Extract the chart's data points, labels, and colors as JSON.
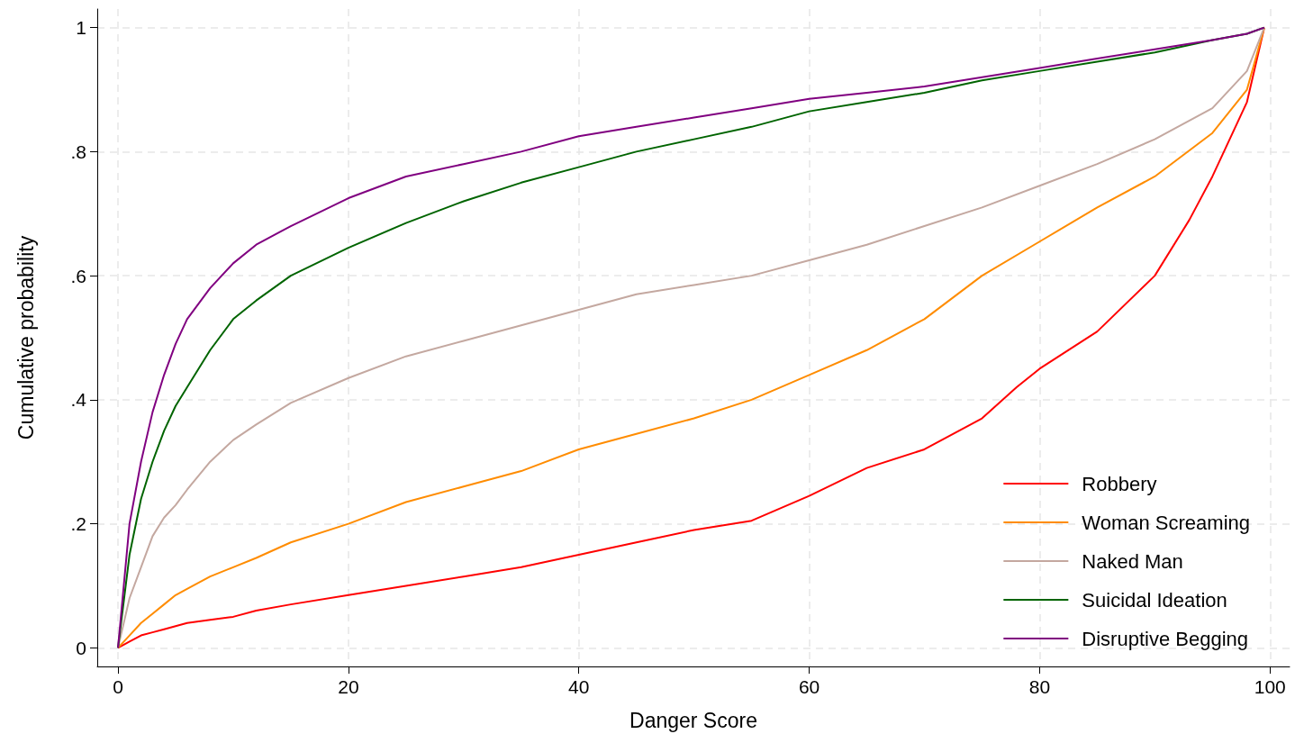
{
  "chart_data": {
    "type": "line",
    "xlabel": "Danger Score",
    "ylabel": "Cumulative probability",
    "x": [
      0,
      1,
      2,
      3,
      4,
      5,
      6,
      8,
      10,
      12,
      15,
      20,
      25,
      30,
      35,
      40,
      45,
      50,
      55,
      60,
      65,
      70,
      75,
      80,
      85,
      90,
      95,
      98,
      99.5
    ],
    "series": [
      {
        "name": "Robbery",
        "color": "#ff0000",
        "x": [
          0,
          1,
          2,
          3,
          4,
          5,
          6,
          8,
          10,
          12,
          15,
          20,
          25,
          30,
          35,
          40,
          45,
          50,
          55,
          60,
          65,
          70,
          75,
          78,
          80,
          85,
          90,
          93,
          95,
          98,
          99.5
        ],
        "values": [
          0,
          0.01,
          0.02,
          0.025,
          0.03,
          0.035,
          0.04,
          0.045,
          0.05,
          0.06,
          0.07,
          0.085,
          0.1,
          0.115,
          0.13,
          0.15,
          0.17,
          0.19,
          0.205,
          0.245,
          0.29,
          0.32,
          0.37,
          0.42,
          0.45,
          0.51,
          0.6,
          0.69,
          0.76,
          0.88,
          1
        ]
      },
      {
        "name": "Woman Screaming",
        "color": "#ff8c00",
        "values": [
          0,
          0.02,
          0.04,
          0.055,
          0.07,
          0.085,
          0.095,
          0.115,
          0.13,
          0.145,
          0.17,
          0.2,
          0.235,
          0.26,
          0.285,
          0.32,
          0.345,
          0.37,
          0.4,
          0.44,
          0.48,
          0.53,
          0.6,
          0.655,
          0.71,
          0.76,
          0.83,
          0.9,
          1
        ]
      },
      {
        "name": "Naked Man",
        "color": "#c4a8a0",
        "values": [
          0,
          0.08,
          0.13,
          0.18,
          0.21,
          0.23,
          0.255,
          0.3,
          0.335,
          0.36,
          0.395,
          0.435,
          0.47,
          0.495,
          0.52,
          0.545,
          0.57,
          0.585,
          0.6,
          0.625,
          0.65,
          0.68,
          0.71,
          0.745,
          0.78,
          0.82,
          0.87,
          0.93,
          1
        ]
      },
      {
        "name": "Suicidal Ideation",
        "color": "#006400",
        "values": [
          0,
          0.15,
          0.24,
          0.3,
          0.35,
          0.39,
          0.42,
          0.48,
          0.53,
          0.56,
          0.6,
          0.645,
          0.685,
          0.72,
          0.75,
          0.775,
          0.8,
          0.82,
          0.84,
          0.865,
          0.88,
          0.895,
          0.915,
          0.93,
          0.945,
          0.96,
          0.98,
          0.99,
          1
        ]
      },
      {
        "name": "Disruptive Begging",
        "color": "#800080",
        "values": [
          0,
          0.2,
          0.3,
          0.38,
          0.44,
          0.49,
          0.53,
          0.58,
          0.62,
          0.65,
          0.68,
          0.725,
          0.76,
          0.78,
          0.8,
          0.825,
          0.84,
          0.855,
          0.87,
          0.885,
          0.895,
          0.905,
          0.92,
          0.935,
          0.95,
          0.965,
          0.98,
          0.99,
          1
        ]
      }
    ],
    "xlim": [
      -1.8,
      101.7
    ],
    "xticks": [
      0,
      20,
      40,
      60,
      80,
      100
    ],
    "ylim": [
      -0.03,
      1.03
    ],
    "yticks": [
      {
        "value": 0,
        "label": "0"
      },
      {
        "value": 0.2,
        "label": ".2"
      },
      {
        "value": 0.4,
        "label": ".4"
      },
      {
        "value": 0.6,
        "label": ".6"
      },
      {
        "value": 0.8,
        "label": ".8"
      },
      {
        "value": 1,
        "label": "1"
      }
    ],
    "grid": true,
    "legend": "bottom right",
    "line_style": "solid"
  }
}
